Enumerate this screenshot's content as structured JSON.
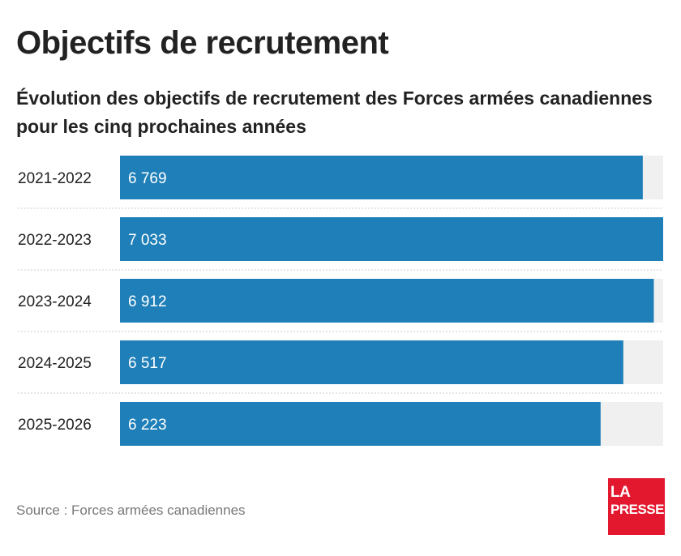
{
  "title": "Objectifs de recrutement",
  "subtitle": "Évolution des objectifs de recrutement des Forces armées canadiennes pour les cinq prochaines années",
  "source": "Source : Forces armées canadiennes",
  "logo": {
    "line1": "LA",
    "line2": "PRESSE",
    "color": "#e3172d"
  },
  "colors": {
    "bar": "#1f7fb8",
    "track": "#f0f0f0",
    "bar_label": "#ffffff",
    "category_label": "#222222",
    "separator": "#cccccc"
  },
  "chart_data": {
    "type": "bar",
    "orientation": "horizontal",
    "categories": [
      "2021-2022",
      "2022-2023",
      "2023-2024",
      "2024-2025",
      "2025-2026"
    ],
    "values": [
      6769,
      7033,
      6912,
      6517,
      6223
    ],
    "value_labels": [
      "6 769",
      "7 033",
      "6 912",
      "6 517",
      "6 223"
    ],
    "xlim": [
      0,
      7033
    ],
    "grid": false,
    "legend": "none"
  }
}
